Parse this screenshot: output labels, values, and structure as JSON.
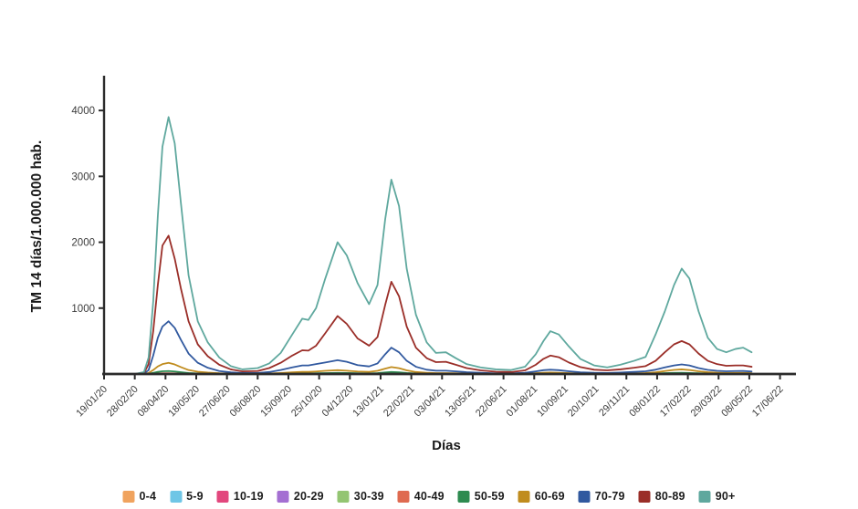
{
  "chart_data": {
    "type": "line",
    "title": "",
    "xlabel": "Días",
    "ylabel": "TM 14 días/1.000.000 hab.",
    "legend_position": "bottom",
    "grid": false,
    "ylim": [
      0,
      4500
    ],
    "xlim_days": [
      0,
      890
    ],
    "y_ticks": [
      1000,
      2000,
      3000,
      4000
    ],
    "x_tick_days": [
      0,
      40,
      80,
      120,
      160,
      200,
      240,
      280,
      320,
      360,
      400,
      440,
      480,
      520,
      560,
      600,
      640,
      680,
      720,
      760,
      800,
      840,
      880
    ],
    "x_tick_labels": [
      "19/01/20",
      "28/02/20",
      "08/04/20",
      "18/05/20",
      "27/06/20",
      "06/08/20",
      "15/09/20",
      "25/10/20",
      "04/12/20",
      "13/01/21",
      "22/02/21",
      "03/04/21",
      "13/05/21",
      "22/06/21",
      "01/08/21",
      "10/09/21",
      "20/10/21",
      "29/11/21",
      "08/01/22",
      "17/02/22",
      "29/03/22",
      "08/05/22",
      "17/06/22"
    ],
    "x_days": [
      0,
      40,
      52,
      58,
      64,
      70,
      76,
      84,
      92,
      100,
      110,
      122,
      135,
      150,
      165,
      180,
      200,
      215,
      230,
      245,
      258,
      266,
      276,
      288,
      304,
      316,
      330,
      345,
      356,
      366,
      374,
      384,
      394,
      406,
      420,
      432,
      445,
      458,
      472,
      490,
      510,
      530,
      548,
      562,
      572,
      581,
      592,
      605,
      620,
      638,
      655,
      672,
      690,
      705,
      718,
      730,
      742,
      752,
      762,
      774,
      786,
      798,
      810,
      822,
      832,
      843
    ],
    "series": [
      {
        "name": "0-4",
        "color": "#F0A35E",
        "values": [
          0,
          0,
          0,
          0,
          0,
          0,
          0,
          0,
          0,
          0,
          0,
          0,
          0,
          0,
          0,
          0,
          0,
          0,
          0,
          0,
          0,
          0,
          0,
          0,
          0,
          0,
          0,
          0,
          0,
          0,
          0,
          0,
          0,
          0,
          0,
          0,
          0,
          0,
          0,
          0,
          0,
          0,
          0,
          0,
          0,
          0,
          0,
          0,
          0,
          0,
          0,
          0,
          0,
          0,
          0,
          0,
          0,
          0,
          0,
          0,
          0,
          0,
          0,
          0,
          0,
          0
        ]
      },
      {
        "name": "5-9",
        "color": "#6FC6E6",
        "values": [
          0,
          0,
          0,
          0,
          0,
          0,
          0,
          0,
          0,
          0,
          0,
          0,
          0,
          0,
          0,
          0,
          0,
          0,
          0,
          0,
          0,
          0,
          0,
          0,
          0,
          0,
          0,
          0,
          0,
          0,
          0,
          0,
          0,
          0,
          0,
          0,
          0,
          0,
          0,
          0,
          0,
          0,
          0,
          0,
          0,
          0,
          0,
          0,
          0,
          0,
          0,
          0,
          0,
          0,
          0,
          0,
          0,
          0,
          0,
          0,
          0,
          0,
          0,
          0,
          0,
          0
        ]
      },
      {
        "name": "10-19",
        "color": "#E2477D",
        "values": [
          0,
          0,
          0,
          0,
          0,
          0,
          0,
          0,
          0,
          0,
          0,
          0,
          0,
          0,
          0,
          0,
          0,
          0,
          0,
          0,
          0,
          0,
          0,
          0,
          0,
          0,
          0,
          0,
          0,
          0,
          0,
          0,
          0,
          0,
          0,
          0,
          0,
          0,
          0,
          0,
          0,
          0,
          0,
          0,
          0,
          0,
          0,
          0,
          0,
          0,
          0,
          0,
          0,
          0,
          0,
          0,
          0,
          0,
          0,
          0,
          0,
          0,
          0,
          0,
          0,
          0
        ]
      },
      {
        "name": "20-29",
        "color": "#A46FD2",
        "values": [
          0,
          0,
          0,
          0,
          0,
          0,
          0,
          0,
          0,
          0,
          0,
          0,
          0,
          0,
          0,
          0,
          0,
          0,
          0,
          0,
          0,
          0,
          0,
          0,
          0,
          0,
          0,
          0,
          0,
          0,
          0,
          0,
          0,
          0,
          0,
          0,
          0,
          0,
          0,
          0,
          0,
          0,
          0,
          0,
          0,
          0,
          0,
          0,
          0,
          0,
          0,
          0,
          0,
          0,
          0,
          0,
          0,
          0,
          0,
          0,
          0,
          0,
          0,
          0,
          0,
          0
        ]
      },
      {
        "name": "30-39",
        "color": "#93C572",
        "values": [
          0,
          0,
          0,
          0,
          1,
          2,
          3,
          3,
          2,
          2,
          1,
          1,
          0,
          0,
          0,
          0,
          0,
          0,
          0,
          1,
          1,
          1,
          1,
          1,
          1,
          1,
          1,
          1,
          1,
          2,
          2,
          2,
          1,
          1,
          0,
          0,
          0,
          0,
          0,
          0,
          0,
          0,
          0,
          0,
          0,
          1,
          0,
          0,
          0,
          0,
          0,
          0,
          0,
          0,
          0,
          1,
          1,
          1,
          1,
          1,
          0,
          0,
          0,
          0,
          0,
          0
        ]
      },
      {
        "name": "40-49",
        "color": "#DF6A50",
        "values": [
          0,
          0,
          0,
          1,
          5,
          9,
          11,
          12,
          10,
          7,
          4,
          2,
          2,
          1,
          1,
          0,
          0,
          1,
          1,
          2,
          2,
          2,
          3,
          4,
          5,
          4,
          3,
          3,
          4,
          6,
          8,
          7,
          4,
          2,
          1,
          1,
          1,
          1,
          1,
          0,
          0,
          0,
          1,
          1,
          2,
          2,
          2,
          1,
          1,
          1,
          1,
          1,
          1,
          1,
          2,
          3,
          4,
          5,
          4,
          3,
          2,
          1,
          1,
          1,
          1,
          1
        ]
      },
      {
        "name": "50-59",
        "color": "#2E8B50",
        "values": [
          0,
          0,
          1,
          5,
          18,
          32,
          42,
          45,
          38,
          28,
          16,
          9,
          6,
          3,
          2,
          1,
          1,
          2,
          4,
          7,
          9,
          9,
          11,
          14,
          17,
          15,
          11,
          10,
          14,
          24,
          30,
          25,
          16,
          9,
          5,
          4,
          4,
          3,
          2,
          2,
          1,
          1,
          2,
          4,
          6,
          7,
          6,
          4,
          3,
          2,
          2,
          3,
          4,
          5,
          8,
          13,
          17,
          19,
          16,
          11,
          8,
          6,
          5,
          5,
          5,
          4
        ]
      },
      {
        "name": "60-69",
        "color": "#C08C1E",
        "values": [
          0,
          0,
          3,
          15,
          60,
          115,
          150,
          170,
          145,
          105,
          60,
          35,
          22,
          11,
          7,
          5,
          5,
          8,
          15,
          25,
          33,
          32,
          38,
          48,
          58,
          50,
          38,
          33,
          48,
          82,
          105,
          88,
          55,
          30,
          18,
          14,
          14,
          11,
          8,
          5,
          4,
          4,
          6,
          13,
          19,
          22,
          19,
          13,
          8,
          6,
          6,
          8,
          11,
          15,
          25,
          45,
          62,
          70,
          60,
          42,
          28,
          20,
          16,
          17,
          17,
          14
        ]
      },
      {
        "name": "70-79",
        "color": "#31599F",
        "values": [
          0,
          0,
          8,
          60,
          280,
          550,
          720,
          800,
          700,
          520,
          310,
          170,
          95,
          45,
          25,
          15,
          15,
          30,
          60,
          100,
          130,
          130,
          150,
          175,
          210,
          185,
          135,
          115,
          160,
          300,
          400,
          330,
          200,
          110,
          65,
          50,
          50,
          40,
          28,
          18,
          10,
          10,
          18,
          40,
          58,
          65,
          58,
          42,
          26,
          18,
          16,
          22,
          32,
          42,
          65,
          100,
          130,
          145,
          130,
          90,
          62,
          48,
          42,
          45,
          46,
          38
        ]
      },
      {
        "name": "80-89",
        "color": "#9A2E28",
        "values": [
          0,
          0,
          15,
          150,
          650,
          1350,
          1950,
          2100,
          1750,
          1300,
          800,
          450,
          270,
          140,
          70,
          40,
          45,
          90,
          170,
          280,
          360,
          355,
          430,
          620,
          880,
          760,
          540,
          430,
          560,
          1050,
          1400,
          1180,
          720,
          400,
          240,
          180,
          185,
          140,
          90,
          55,
          35,
          30,
          55,
          140,
          230,
          280,
          255,
          175,
          105,
          65,
          55,
          70,
          95,
          120,
          200,
          330,
          450,
          500,
          450,
          310,
          200,
          150,
          125,
          130,
          130,
          110
        ]
      },
      {
        "name": "90+",
        "color": "#5FA89E",
        "values": [
          0,
          0,
          30,
          250,
          1100,
          2400,
          3450,
          3900,
          3500,
          2600,
          1500,
          800,
          480,
          250,
          120,
          70,
          90,
          160,
          320,
          600,
          840,
          820,
          1000,
          1450,
          2000,
          1800,
          1380,
          1060,
          1350,
          2350,
          2950,
          2550,
          1600,
          900,
          480,
          320,
          330,
          240,
          150,
          100,
          70,
          60,
          110,
          300,
          500,
          650,
          600,
          420,
          230,
          130,
          100,
          140,
          200,
          260,
          600,
          950,
          1350,
          1600,
          1450,
          950,
          550,
          380,
          330,
          380,
          400,
          330
        ]
      }
    ]
  }
}
